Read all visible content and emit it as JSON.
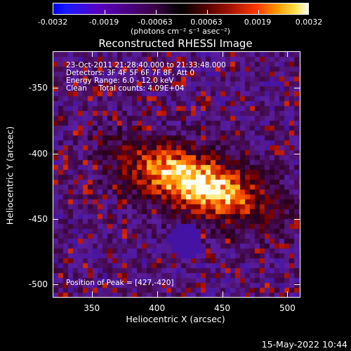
{
  "colorbar": {
    "tick_labels": [
      "-0.0032",
      "-0.0019",
      "-0.00063",
      "0.00063",
      "0.0019",
      "0.0032"
    ],
    "unit": "(photons cm⁻² s⁻¹ asec⁻²)"
  },
  "title": "Reconstructed RHESSI Image",
  "info": {
    "time_range": "23-Oct-2011 21:28:40.000 to 21:33:48.000",
    "detectors": "Detectors: 3F 4F 5F 6F 7F 8F, Att 0",
    "energy": "Energy Range: 6.0 - 12.0 keV",
    "clean": "Clean     Total counts: 4.09E+04",
    "peak": "Position of Peak = [427,-420]"
  },
  "axes": {
    "xlabel": "Heliocentric X (arcsec)",
    "ylabel": "Heliocentric Y (arcsec)",
    "xticks": [
      "350",
      "400",
      "450",
      "500"
    ],
    "yticks": [
      "-350",
      "-400",
      "-450",
      "-500"
    ]
  },
  "footer": {
    "timestamp": "15-May-2022 10:44"
  },
  "chart_data": {
    "type": "heatmap",
    "title": "Reconstructed RHESSI Image",
    "xlabel": "Heliocentric X (arcsec)",
    "ylabel": "Heliocentric Y (arcsec)",
    "xlim": [
      320,
      510
    ],
    "ylim": [
      -510,
      -322
    ],
    "color_range": [
      -0.0032,
      0.0032
    ],
    "peak": [
      427,
      -420
    ],
    "colors": {
      "negative": "#5a2e9c",
      "zero": "#3a0040",
      "low_positive": "#b01000",
      "mid": "#ff5a00",
      "high": "#ffe27a",
      "max": "#ffffff"
    }
  }
}
